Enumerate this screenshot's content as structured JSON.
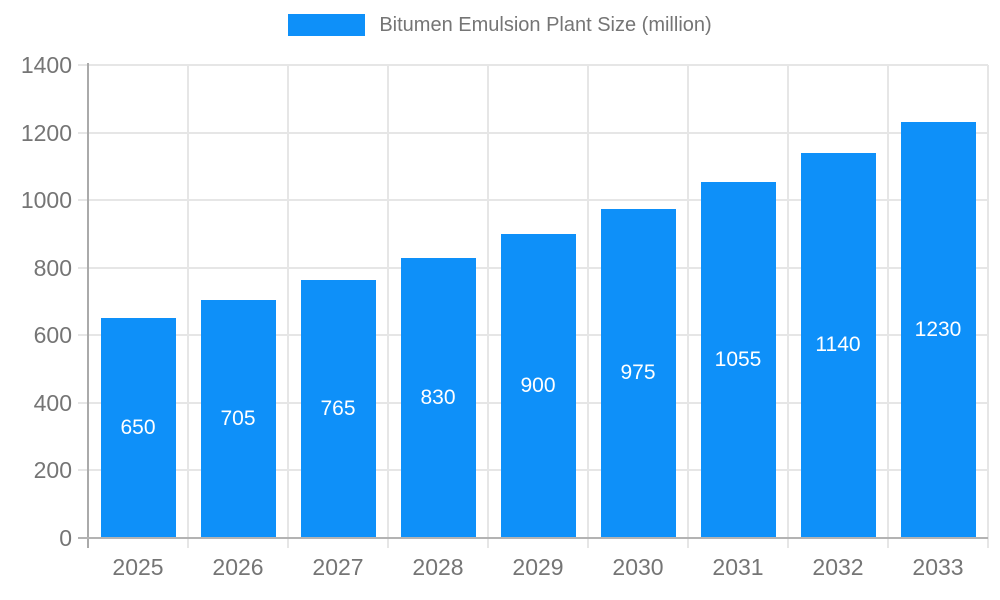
{
  "legend": {
    "label": "Bitumen Emulsion Plant Size (million)"
  },
  "chart_data": {
    "type": "bar",
    "title": "Bitumen Emulsion Plant Size (million)",
    "series_name": "Bitumen Emulsion Plant Size (million)",
    "categories": [
      "2025",
      "2026",
      "2027",
      "2028",
      "2029",
      "2030",
      "2031",
      "2032",
      "2033"
    ],
    "values": [
      650,
      705,
      765,
      830,
      900,
      975,
      1055,
      1140,
      1230
    ],
    "value_labels": [
      "650",
      "705",
      "765",
      "830",
      "900",
      "975",
      "1055",
      "1140",
      "1230"
    ],
    "xlabel": "",
    "ylabel": "",
    "ylim": [
      0,
      1400
    ],
    "yticks": [
      0,
      200,
      400,
      600,
      800,
      1000,
      1200,
      1400
    ],
    "grid": true,
    "legend_position": "top",
    "colors": {
      "bar": "#0E90F9",
      "bar_value_text": "#ffffff",
      "axis_text": "#757575",
      "gridline": "#e6e6e6",
      "axis_line": "#aaaaaa",
      "baseline": "#b3b3b3"
    }
  }
}
